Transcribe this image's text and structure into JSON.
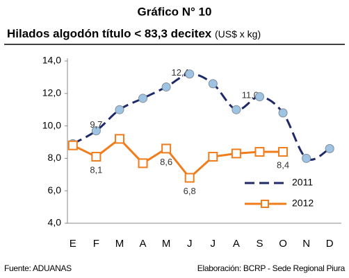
{
  "chart_data": {
    "type": "line",
    "title": "Gráfico N° 10",
    "subtitle": "Hilados algodón título < 83,3 decitex",
    "subtitle_unit": "(US$ x kg)",
    "source": "Fuente: ADUANAS",
    "credit": "Elaboración: BCRP - Sede Regional Piura",
    "categories": [
      "E",
      "F",
      "M",
      "A",
      "M",
      "J",
      "J",
      "A",
      "S",
      "O",
      "N",
      "D"
    ],
    "ylim": [
      4,
      14
    ],
    "yticks": [
      {
        "value": 4,
        "label": "4,0"
      },
      {
        "value": 6,
        "label": "6,0"
      },
      {
        "value": 8,
        "label": "8,0"
      },
      {
        "value": 10,
        "label": "10,0"
      },
      {
        "value": 12,
        "label": "12,0"
      },
      {
        "value": 14,
        "label": "14,0"
      }
    ],
    "grid": false,
    "legend": "lower right",
    "series": [
      {
        "name": "2011",
        "color": "#1f2a6b",
        "values": [
          8.9,
          9.7,
          11.0,
          11.7,
          12.4,
          13.2,
          12.6,
          11.0,
          11.8,
          10.8,
          8.0,
          8.6
        ],
        "value_labels": [
          null,
          "9,7",
          null,
          null,
          "12,4",
          null,
          null,
          "11,0",
          null,
          null,
          null,
          null
        ]
      },
      {
        "name": "2012",
        "color": "#f07c1c",
        "values": [
          8.8,
          8.1,
          9.2,
          7.7,
          8.6,
          6.8,
          8.1,
          8.3,
          8.4,
          8.4,
          null,
          null
        ],
        "value_labels": [
          null,
          "8,1",
          null,
          null,
          "8,6",
          "6,8",
          null,
          null,
          null,
          "8,4",
          null,
          null
        ]
      }
    ]
  }
}
